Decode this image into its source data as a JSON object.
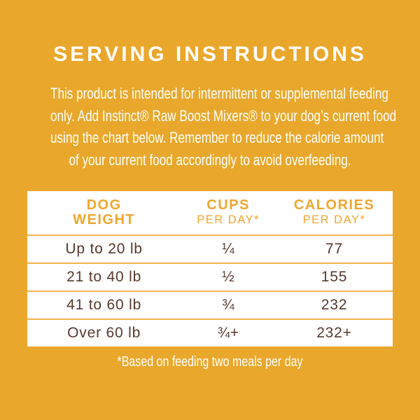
{
  "colors": {
    "background": "#E9A72B",
    "table_header_text": "#EFA62F",
    "row_divider": "#F3B54B",
    "row_text": "#54392E",
    "text_on_orange": "#FFFFFF",
    "table_background": "#FFFFFF"
  },
  "title": "SERVING INSTRUCTIONS",
  "intro": {
    "lines": [
      "This product is intended for intermittent or supplemental feeding",
      "only. Add Instinct® Raw Boost Mixers® to your dog’s current food",
      "using the chart below. Remember to reduce the calorie amount",
      "of your current food accordingly to avoid overfeeding."
    ]
  },
  "table": {
    "header": {
      "col1": {
        "line1": "DOG",
        "line2": "WEIGHT"
      },
      "col2": {
        "line1": "CUPS",
        "line2": "PER DAY*"
      },
      "col3": {
        "line1": "CALORIES",
        "line2": "PER DAY*"
      }
    },
    "rows": [
      {
        "weight": "Up to 20 lb",
        "cups": "¼",
        "calories": "77"
      },
      {
        "weight": "21 to 40 lb",
        "cups": "½",
        "calories": "155"
      },
      {
        "weight": "41 to 60 lb",
        "cups": "¾",
        "calories": "232"
      },
      {
        "weight": "Over 60 lb",
        "cups": "¾+",
        "calories": "232+"
      }
    ]
  },
  "footnote": "*Based on feeding two meals per day"
}
